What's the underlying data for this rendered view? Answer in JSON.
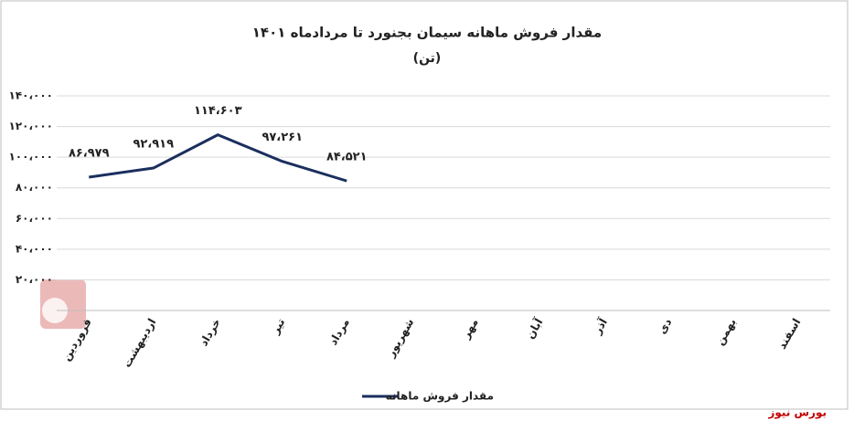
{
  "chart_data": {
    "type": "line",
    "title": "مقدار فروش ماهانه سیمان بجنورد تا مردادماه ۱۴۰۱",
    "subtitle": "(تن)",
    "categories": [
      "فروردین",
      "اردیبهشت",
      "خرداد",
      "تیر",
      "مرداد",
      "شهریور",
      "مهر",
      "آبان",
      "آذر",
      "دی",
      "بهمن",
      "اسفند"
    ],
    "series": [
      {
        "name": "مقدار فروش ماهانه",
        "color": "#1b2f5e",
        "values": [
          86979,
          92919,
          114603,
          97261,
          84521,
          null,
          null,
          null,
          null,
          null,
          null,
          null
        ],
        "value_labels": [
          "۸۶،۹۷۹",
          "۹۲،۹۱۹",
          "۱۱۴،۶۰۳",
          "۹۷،۲۶۱",
          "۸۴،۵۲۱",
          null,
          null,
          null,
          null,
          null,
          null,
          null
        ]
      }
    ],
    "ylim": [
      0,
      140000
    ],
    "yticks": [
      {
        "value": 20000,
        "label": "۲۰،۰۰۰"
      },
      {
        "value": 40000,
        "label": "۴۰،۰۰۰"
      },
      {
        "value": 60000,
        "label": "۶۰،۰۰۰"
      },
      {
        "value": 80000,
        "label": "۸۰،۰۰۰"
      },
      {
        "value": 100000,
        "label": "۱۰۰،۰۰۰"
      },
      {
        "value": 120000,
        "label": "۱۲۰،۰۰۰"
      },
      {
        "value": 140000,
        "label": "۱۴۰،۰۰۰"
      }
    ],
    "grid": true,
    "legend": "bottom",
    "source": "بورس نیوز"
  }
}
